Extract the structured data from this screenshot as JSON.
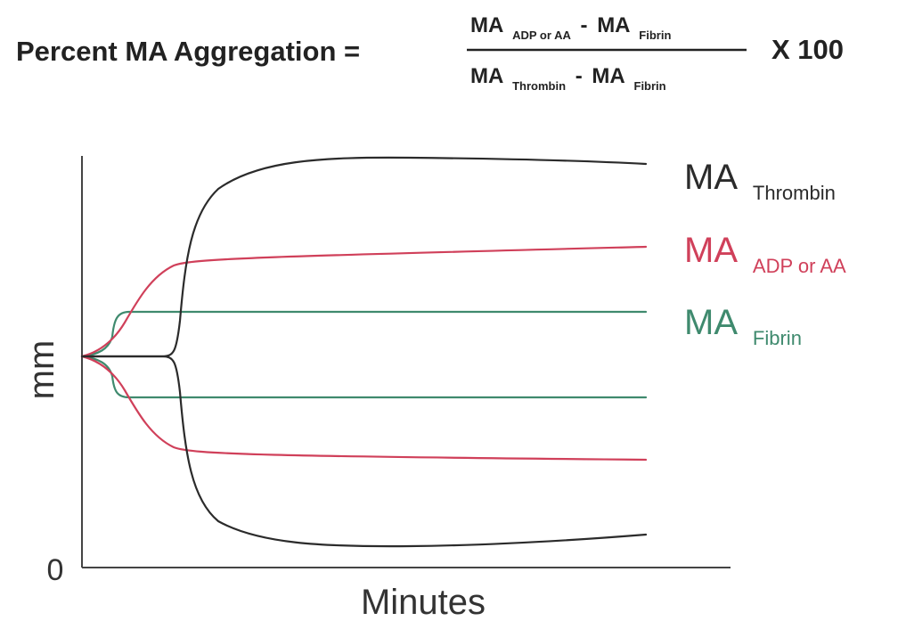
{
  "formula": {
    "lhs": "Percent MA Aggregation =",
    "numerator": {
      "term1_main": "MA",
      "term1_sub": "ADP or AA",
      "minus": "-",
      "term2_main": "MA",
      "term2_sub": "Fibrin"
    },
    "denominator": {
      "term1_main": "MA",
      "term1_sub": "Thrombin",
      "minus": "-",
      "term2_main": "MA",
      "term2_sub": "Fibrin"
    },
    "multiplier": "X 100"
  },
  "axes": {
    "ylabel": "mm",
    "xlabel": "Minutes",
    "origin_label": "0"
  },
  "curves": [
    {
      "label_main": "MA",
      "label_sub": "Thrombin",
      "color": "#2b2b2b"
    },
    {
      "label_main": "MA",
      "label_sub": "ADP or AA",
      "color": "#d0405a"
    },
    {
      "label_main": "MA",
      "label_sub": "Fibrin",
      "color": "#3f8a6e"
    }
  ]
}
